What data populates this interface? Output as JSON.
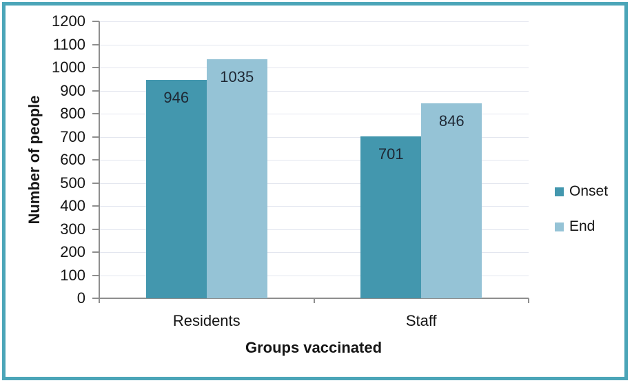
{
  "chart_data": {
    "type": "bar",
    "title": "",
    "categories": [
      "Residents",
      "Staff"
    ],
    "series": [
      {
        "name": "Onset",
        "color": "#4397AE",
        "values": [
          946,
          701
        ]
      },
      {
        "name": "End",
        "color": "#95C3D6",
        "values": [
          1035,
          846
        ]
      }
    ],
    "xlabel": "Groups vaccinated",
    "ylabel": "Number of people",
    "ylim": [
      0,
      1200
    ],
    "y_ticks": [
      0,
      100,
      200,
      300,
      400,
      500,
      600,
      700,
      800,
      900,
      1000,
      1100,
      1200
    ],
    "grid": "horizontal",
    "legend_position": "right",
    "data_labels": "inside-end"
  },
  "colors": {
    "frame_border": "#4BA5B8",
    "background": "#FFFFFF",
    "axis_line": "#8E8E8E",
    "gridline": "#E3E6EF",
    "data_label_text": "#1E2733",
    "tick_label_text": "#141414"
  }
}
